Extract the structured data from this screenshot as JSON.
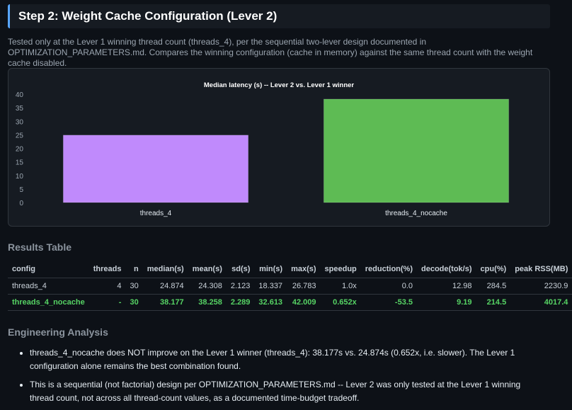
{
  "header": {
    "title": "Step 2: Weight Cache Configuration (Lever 2)"
  },
  "intro": {
    "text": "Tested only at the Lever 1 winning thread count (threads_4), per the sequential two-lever design documented in OPTIMIZATION_PARAMETERS.md. Compares the winning configuration (cache in memory) against the same thread count with the weight cache disabled."
  },
  "chart_data": {
    "type": "bar",
    "title": "Median latency (s) -- Lever 2 vs. Lever 1 winner",
    "categories": [
      "threads_4",
      "threads_4_nocache"
    ],
    "values": [
      24.874,
      38.177
    ],
    "colors": [
      "#c08afc",
      "#5ebb54"
    ],
    "ylim": [
      0,
      40
    ],
    "yticks": [
      0,
      5,
      10,
      15,
      20,
      25,
      30,
      35,
      40
    ],
    "grid": false,
    "legend": "none"
  },
  "results": {
    "title": "Results Table",
    "columns": [
      "config",
      "threads",
      "n",
      "median(s)",
      "mean(s)",
      "sd(s)",
      "min(s)",
      "max(s)",
      "speedup",
      "reduction(%)",
      "decode(tok/s)",
      "cpu(%)",
      "peak RSS(MB)"
    ],
    "rows": [
      [
        "threads_4",
        "4",
        "30",
        "24.874",
        "24.308",
        "2.123",
        "18.337",
        "26.783",
        "1.0x",
        "0.0",
        "12.98",
        "284.5",
        "2230.9"
      ],
      [
        "threads_4_nocache",
        "-",
        "30",
        "38.177",
        "38.258",
        "2.289",
        "32.613",
        "42.009",
        "0.652x",
        "-53.5",
        "9.19",
        "214.5",
        "4017.4"
      ]
    ]
  },
  "analysis": {
    "title": "Engineering Analysis",
    "items": [
      "threads_4_nocache does NOT improve on the Lever 1 winner (threads_4): 38.177s vs. 24.874s (0.652x, i.e. slower). The Lever 1 configuration alone remains the best combination found.",
      "This is a sequential (not factorial) design per OPTIMIZATION_PARAMETERS.md -- Lever 2 was only tested at the Lever 1 winning thread count, not across all thread-count values, as a documented time-budget tradeoff."
    ]
  },
  "colors": {
    "background": "#0d1117",
    "panel": "#161b22",
    "accent": "#58a6ff",
    "winner": "#56d364"
  }
}
